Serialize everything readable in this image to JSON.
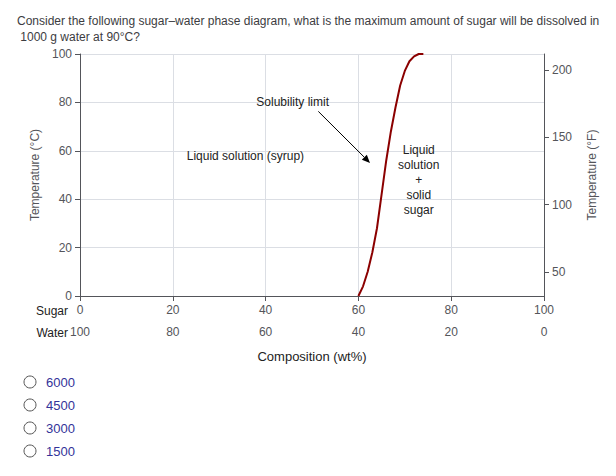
{
  "chart_data": {
    "type": "line",
    "title": "Consider the following sugar–water phase diagram, what is the maximum amount of sugar will be dissolved in 1000 g water at 90°C?",
    "xlabel": "Composition (wt%)",
    "x_row_label": "Sugar",
    "x2_row_label": "Water",
    "ylabel": "Temperature (°C)",
    "y2label": "Temperature (°F)",
    "x": [
      60,
      61,
      62,
      63,
      64,
      65,
      66,
      67,
      68,
      69,
      70,
      71,
      72,
      73,
      74
    ],
    "values": [
      0,
      4,
      10,
      18,
      28,
      42,
      56,
      68,
      78,
      87,
      93,
      97,
      99,
      100,
      100
    ],
    "color": "#8B0000",
    "xlim": [
      0,
      100
    ],
    "xticks": [
      0,
      20,
      40,
      60,
      80,
      100
    ],
    "x2lim": [
      100,
      0
    ],
    "x2ticks": [
      100,
      80,
      60,
      40,
      20,
      0
    ],
    "ylim": [
      0,
      100
    ],
    "yticks": [
      0,
      20,
      40,
      60,
      80,
      100
    ],
    "y2lim": [
      32,
      212
    ],
    "y2ticks": [
      50,
      100,
      150,
      200
    ],
    "grid": true,
    "annotations": [
      "Liquid solution (syrup)",
      "Liquid\nsolution\n+\nsolid\nsugar",
      "Solubility limit"
    ],
    "answer_options": [
      "6000",
      "4500",
      "3000",
      "1500"
    ]
  }
}
